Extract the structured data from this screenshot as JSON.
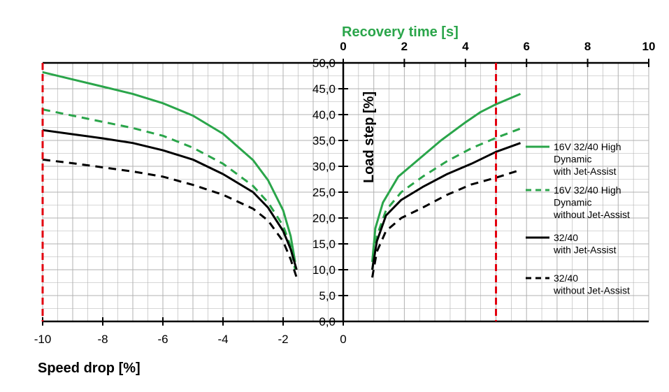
{
  "colors": {
    "green": "#2aa54a",
    "black": "#000000",
    "red_marker": "#e3000f",
    "grid": "#b0b0b0"
  },
  "chart_data": {
    "type": "line",
    "left_panel": {
      "xlabel": "Speed drop [%]",
      "xlim": [
        -10,
        0
      ],
      "xticks": [
        "-10",
        "-8",
        "-6",
        "-4",
        "-2",
        "0"
      ],
      "xtick_values": [
        -10,
        -8,
        -6,
        -4,
        -2,
        0
      ],
      "reference_line_x": -10
    },
    "right_panel": {
      "xlabel": "Recovery time [s]",
      "xlim": [
        0,
        10
      ],
      "xticks": [
        "0",
        "2",
        "4",
        "6",
        "8",
        "10"
      ],
      "xtick_values": [
        0,
        2,
        4,
        6,
        8,
        10
      ],
      "reference_line_x": 5
    },
    "ylabel": "Load step [%]",
    "ylim": [
      0,
      50
    ],
    "yticks": [
      "0,0",
      "5,0",
      "10,0",
      "15,0",
      "20,0",
      "25,0",
      "30,0",
      "35,0",
      "40,0",
      "45,0",
      "50,0"
    ],
    "ytick_values": [
      0,
      5,
      10,
      15,
      20,
      25,
      30,
      35,
      40,
      45,
      50
    ],
    "grid": true,
    "legend_position": "right",
    "series": [
      {
        "name": "16V 32/40 High Dynamic with Jet-Assist",
        "legend_lines": [
          "16V 32/40 High",
          "Dynamic",
          "with Jet-Assist"
        ],
        "color": "green",
        "dash": "solid",
        "speed_drop": [
          [
            -10,
            48.2
          ],
          [
            -9,
            46.8
          ],
          [
            -8,
            45.4
          ],
          [
            -7,
            44.0
          ],
          [
            -6,
            42.2
          ],
          [
            -5,
            39.8
          ],
          [
            -4,
            36.3
          ],
          [
            -3,
            31.2
          ],
          [
            -2.5,
            27.3
          ],
          [
            -2,
            21.5
          ],
          [
            -1.75,
            16.5
          ],
          [
            -1.6,
            11.5
          ]
        ],
        "recovery_time": [
          [
            0.95,
            11.5
          ],
          [
            1.05,
            18.0
          ],
          [
            1.3,
            23.0
          ],
          [
            1.8,
            28.0
          ],
          [
            2.5,
            31.5
          ],
          [
            3.2,
            35.0
          ],
          [
            4.0,
            38.5
          ],
          [
            4.5,
            40.5
          ],
          [
            5.0,
            42.0
          ],
          [
            5.8,
            44.0
          ]
        ]
      },
      {
        "name": "16V 32/40 High Dynamic without Jet-Assist",
        "legend_lines": [
          "16V 32/40 High",
          "Dynamic",
          "without Jet-Assist"
        ],
        "color": "green",
        "dash": "dashed",
        "speed_drop": [
          [
            -10,
            41.0
          ],
          [
            -9,
            39.8
          ],
          [
            -8,
            38.6
          ],
          [
            -7,
            37.4
          ],
          [
            -6,
            35.9
          ],
          [
            -5,
            33.6
          ],
          [
            -4,
            30.5
          ],
          [
            -3,
            26.2
          ],
          [
            -2.5,
            23.0
          ],
          [
            -2,
            18.5
          ],
          [
            -1.75,
            14.5
          ],
          [
            -1.6,
            10.0
          ]
        ],
        "recovery_time": [
          [
            0.95,
            10.0
          ],
          [
            1.1,
            16.5
          ],
          [
            1.4,
            21.5
          ],
          [
            1.9,
            25.0
          ],
          [
            2.6,
            28.0
          ],
          [
            3.4,
            31.0
          ],
          [
            4.2,
            33.5
          ],
          [
            5.0,
            35.5
          ],
          [
            5.8,
            37.3
          ]
        ]
      },
      {
        "name": "32/40 with Jet-Assist",
        "legend_lines": [
          "32/40",
          "with Jet-Assist"
        ],
        "color": "black",
        "dash": "solid",
        "speed_drop": [
          [
            -10,
            37.0
          ],
          [
            -9,
            36.2
          ],
          [
            -8,
            35.4
          ],
          [
            -7,
            34.5
          ],
          [
            -6,
            33.1
          ],
          [
            -5,
            31.3
          ],
          [
            -4,
            28.5
          ],
          [
            -3,
            25.0
          ],
          [
            -2.5,
            22.0
          ],
          [
            -2,
            17.5
          ],
          [
            -1.75,
            14.0
          ],
          [
            -1.55,
            10.0
          ]
        ],
        "recovery_time": [
          [
            0.95,
            10.0
          ],
          [
            1.1,
            15.5
          ],
          [
            1.4,
            20.5
          ],
          [
            1.9,
            23.5
          ],
          [
            2.6,
            26.0
          ],
          [
            3.4,
            28.5
          ],
          [
            4.2,
            30.5
          ],
          [
            5.0,
            32.8
          ],
          [
            5.8,
            34.5
          ]
        ]
      },
      {
        "name": "32/40 without Jet-Assist",
        "legend_lines": [
          "32/40",
          "without Jet-Assist"
        ],
        "color": "black",
        "dash": "dashed",
        "speed_drop": [
          [
            -10,
            31.3
          ],
          [
            -9,
            30.6
          ],
          [
            -8,
            29.8
          ],
          [
            -7,
            29.0
          ],
          [
            -6,
            28.0
          ],
          [
            -5,
            26.4
          ],
          [
            -4,
            24.5
          ],
          [
            -3,
            21.8
          ],
          [
            -2.5,
            19.5
          ],
          [
            -2,
            15.5
          ],
          [
            -1.75,
            12.0
          ],
          [
            -1.55,
            8.5
          ]
        ],
        "recovery_time": [
          [
            0.95,
            8.5
          ],
          [
            1.1,
            13.5
          ],
          [
            1.4,
            17.5
          ],
          [
            1.9,
            20.0
          ],
          [
            2.6,
            22.0
          ],
          [
            3.4,
            24.5
          ],
          [
            4.2,
            26.5
          ],
          [
            5.0,
            27.8
          ],
          [
            5.8,
            29.3
          ]
        ]
      }
    ]
  }
}
